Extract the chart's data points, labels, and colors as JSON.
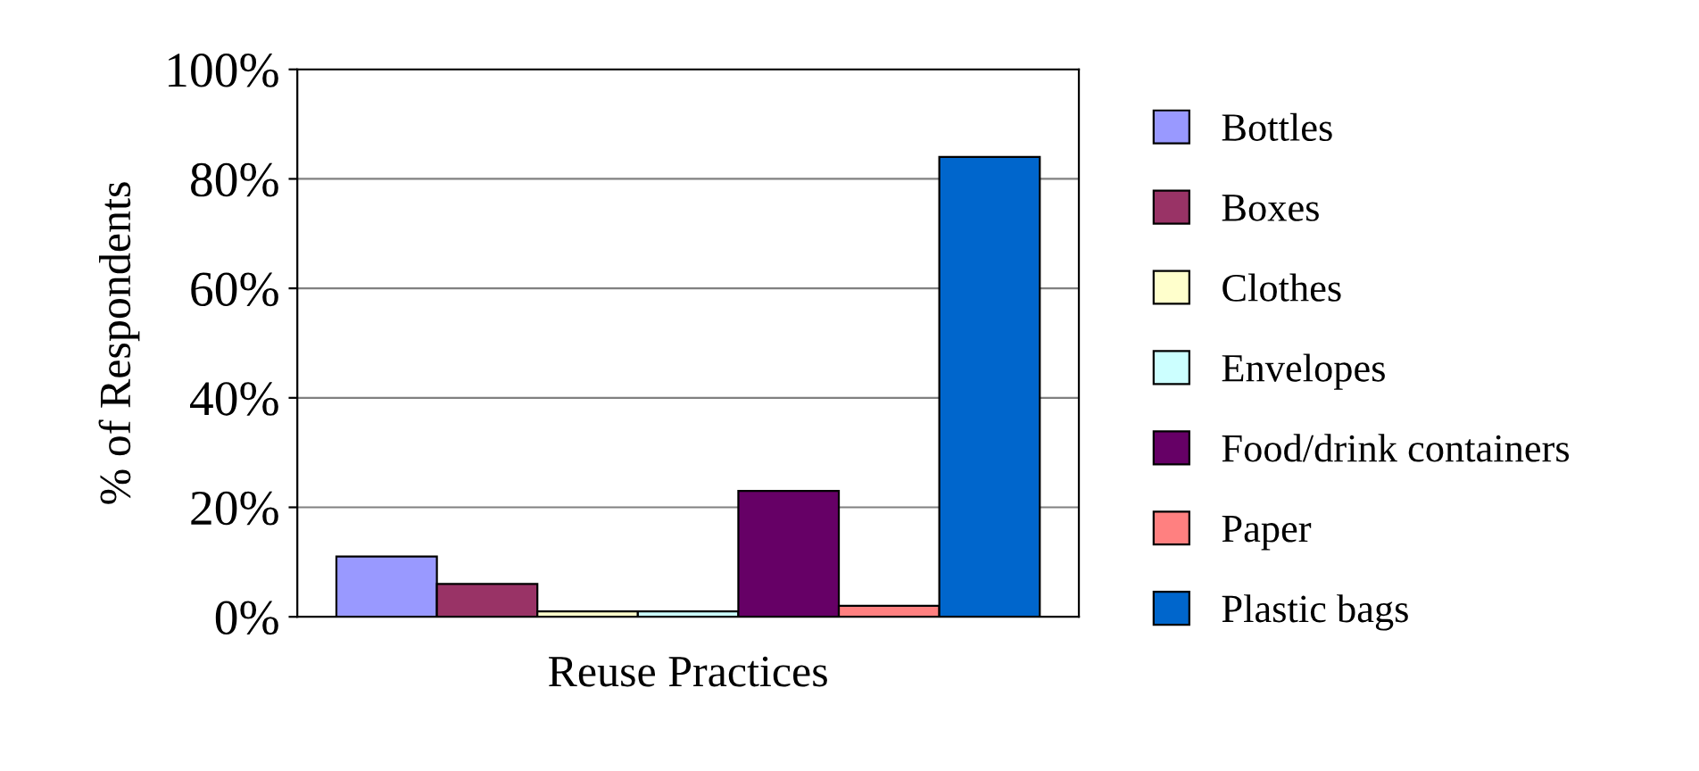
{
  "chart_data": {
    "type": "bar",
    "xlabel": "Reuse Practices",
    "ylabel": "% of Respondents",
    "categories": [
      null
    ],
    "series": [
      {
        "name": "Bottles",
        "color": "#9999ff",
        "values": [
          11
        ]
      },
      {
        "name": "Boxes",
        "color": "#993366",
        "values": [
          6
        ]
      },
      {
        "name": "Clothes",
        "color": "#ffffcc",
        "values": [
          1
        ]
      },
      {
        "name": "Envelopes",
        "color": "#ccffff",
        "values": [
          1
        ]
      },
      {
        "name": "Food/drink containers",
        "color": "#660066",
        "values": [
          23
        ]
      },
      {
        "name": "Paper",
        "color": "#ff8080",
        "values": [
          2
        ]
      },
      {
        "name": "Plastic bags",
        "color": "#0066cc",
        "values": [
          84
        ]
      }
    ],
    "ylim": [
      0,
      100
    ],
    "yticks": [
      {
        "value": 0,
        "label": "0%"
      },
      {
        "value": 20,
        "label": "20%"
      },
      {
        "value": 40,
        "label": "40%"
      },
      {
        "value": 60,
        "label": "60%"
      },
      {
        "value": 80,
        "label": "80%"
      },
      {
        "value": 100,
        "label": "100%"
      }
    ],
    "grid": "y",
    "legend": "right"
  }
}
